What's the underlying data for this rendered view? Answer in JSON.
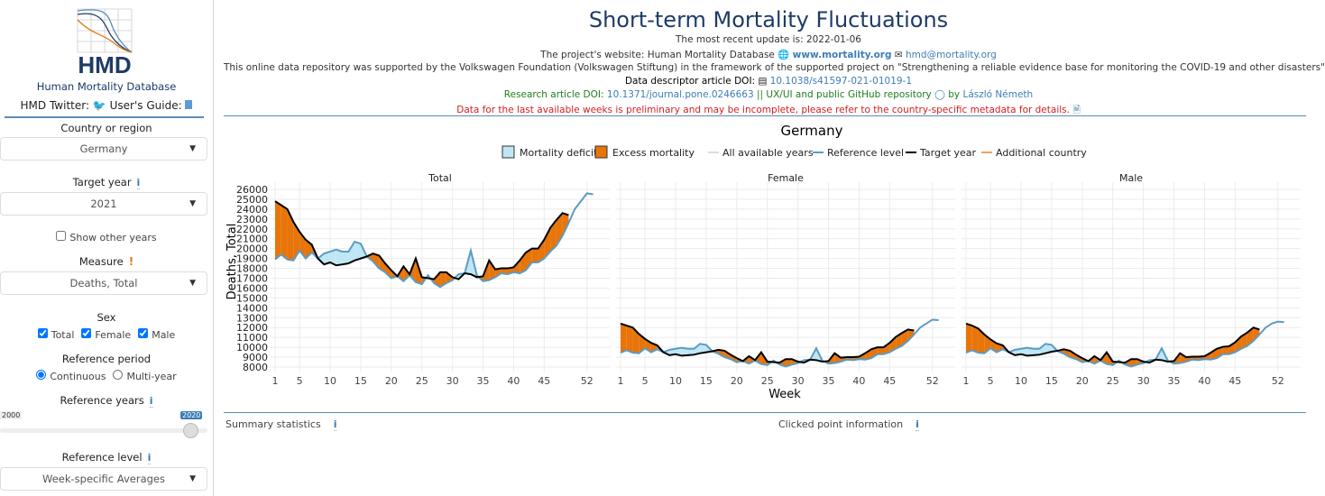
{
  "sidebar": {
    "logo_text": "HMD",
    "db_name": "Human Mortality Database",
    "twitter_label": "HMD Twitter:",
    "guide_label": "User's Guide:",
    "country_label": "Country or region",
    "country_value": "Germany",
    "target_year_label": "Target year",
    "target_year_value": "2021",
    "show_other_years": "Show other years",
    "measure_label": "Measure",
    "measure_value": "Deaths, Total",
    "sex_label": "Sex",
    "sex_options": [
      "Total",
      "Female",
      "Male"
    ],
    "ref_period_label": "Reference period",
    "ref_period_options": [
      "Continuous",
      "Multi-year"
    ],
    "ref_years_label": "Reference years",
    "ref_years_min": "2000",
    "ref_years_max": "2020",
    "ref_level_label": "Reference level",
    "ref_level_value": "Week-specific Averages"
  },
  "header": {
    "title": "Short-term Mortality Fluctuations",
    "update": "The most recent update is: 2022-01-06",
    "website_prefix": "The project's website: Human Mortality Database",
    "website": "www.mortality.org",
    "email": "hmd@mortality.org",
    "support": "This online data repository was supported by the Volkswagen Foundation (Volkswagen Stiftung) in the framework of the supported project on \"Strengthening a reliable evidence base for monitoring the COVID-19 and other disasters\"",
    "doi_label": "Data descriptor article DOI:",
    "doi": "10.1038/s41597-021-01019-1",
    "research_label": "Research article DOI:",
    "research_doi": "10.1371/journal.pone.0246663",
    "github_text": "|| UX/UI and public GitHub repository",
    "by": "by",
    "author": "László Németh",
    "warning": "Data for the last available weeks is preliminary and may be incomplete, please refer to the country-specific metadata for details."
  },
  "bottom": {
    "summary": "Summary statistics",
    "clicked": "Clicked point information"
  },
  "colors": {
    "excess": "#e8750a",
    "deficit": "#bfe6f5",
    "reference": "#5b9bc4",
    "target": "#000000"
  },
  "chart_data": {
    "type": "area",
    "title": "Germany",
    "xlabel": "Week",
    "ylabel": "Deaths, Total",
    "legend": [
      "Mortality deficit",
      "Excess mortality",
      "All available years",
      "Reference level",
      "Target year",
      "Additional country"
    ],
    "legend_position": "top",
    "yticks": [
      8000,
      9000,
      10000,
      11000,
      12000,
      13000,
      14000,
      15000,
      16000,
      17000,
      18000,
      19000,
      20000,
      21000,
      22000,
      23000,
      24000,
      25000,
      26000
    ],
    "xticks": [
      1,
      5,
      10,
      15,
      20,
      25,
      30,
      35,
      40,
      45,
      52
    ],
    "ylim": [
      7500,
      26500
    ],
    "panels": [
      {
        "name": "Total",
        "target": [
          24800,
          24400,
          24000,
          22700,
          21700,
          20900,
          20400,
          19000,
          18400,
          18600,
          18300,
          18400,
          18500,
          18800,
          19000,
          19200,
          19500,
          19300,
          18500,
          17800,
          17200,
          18200,
          17400,
          19000,
          17100,
          17000,
          16900,
          17600,
          17600,
          17100,
          16900,
          17500,
          17400,
          17100,
          17200,
          18800,
          17900,
          18000,
          18000,
          18100,
          18800,
          19600,
          20000,
          20000,
          20900,
          22100,
          22900,
          23600,
          23400
        ],
        "reference": [
          18900,
          19400,
          18900,
          18800,
          19800,
          19000,
          19600,
          19000,
          19500,
          19700,
          19900,
          19700,
          19700,
          20700,
          20500,
          19200,
          18700,
          18000,
          17600,
          17000,
          17200,
          16700,
          17300,
          16600,
          16400,
          17300,
          16500,
          16100,
          16500,
          16800,
          17400,
          17500,
          19800,
          17300,
          16700,
          16800,
          17100,
          17500,
          17400,
          17600,
          17500,
          17800,
          18600,
          18600,
          19000,
          19700,
          20300,
          21300,
          22600,
          24000,
          24800,
          25600,
          25500
        ]
      },
      {
        "name": "Female",
        "target": [
          12400,
          12200,
          12000,
          11350,
          10850,
          10450,
          10200,
          9500,
          9200,
          9300,
          9150,
          9200,
          9250,
          9400,
          9500,
          9600,
          9750,
          9650,
          9250,
          8900,
          8600,
          9100,
          8700,
          9500,
          8550,
          8500,
          8450,
          8800,
          8800,
          8550,
          8450,
          8750,
          8700,
          8550,
          8600,
          9400,
          8950,
          9000,
          9000,
          9050,
          9400,
          9800,
          10000,
          10000,
          10450,
          11050,
          11450,
          11800,
          11700
        ],
        "reference": [
          9450,
          9700,
          9450,
          9400,
          9900,
          9500,
          9800,
          9500,
          9750,
          9850,
          9950,
          9850,
          9850,
          10350,
          10250,
          9600,
          9350,
          9000,
          8800,
          8500,
          8600,
          8350,
          8650,
          8300,
          8200,
          8650,
          8250,
          8050,
          8250,
          8400,
          8700,
          8750,
          9900,
          8650,
          8350,
          8400,
          8550,
          8750,
          8700,
          8800,
          8750,
          8900,
          9300,
          9300,
          9500,
          9850,
          10150,
          10650,
          11300,
          12000,
          12400,
          12800,
          12750
        ]
      },
      {
        "name": "Male",
        "target": [
          12400,
          12200,
          11900,
          11300,
          10800,
          10400,
          10200,
          9500,
          9200,
          9300,
          9150,
          9200,
          9250,
          9400,
          9550,
          9650,
          9800,
          9650,
          9250,
          8900,
          8600,
          9100,
          8700,
          9500,
          8550,
          8500,
          8450,
          8800,
          8800,
          8550,
          8450,
          8750,
          8700,
          8550,
          8600,
          9400,
          9000,
          9050,
          9050,
          9100,
          9450,
          9850,
          10050,
          10100,
          10500,
          11100,
          11500,
          12000,
          11800
        ],
        "reference": [
          9450,
          9700,
          9450,
          9400,
          9900,
          9500,
          9800,
          9500,
          9750,
          9850,
          9950,
          9850,
          9850,
          10350,
          10250,
          9600,
          9350,
          9000,
          8800,
          8500,
          8600,
          8350,
          8650,
          8300,
          8200,
          8650,
          8250,
          8050,
          8250,
          8400,
          8700,
          8750,
          9900,
          8650,
          8350,
          8400,
          8550,
          8750,
          8700,
          8800,
          8750,
          8900,
          9300,
          9300,
          9500,
          9850,
          10150,
          10650,
          11300,
          12000,
          12400,
          12600,
          12550
        ]
      }
    ]
  }
}
